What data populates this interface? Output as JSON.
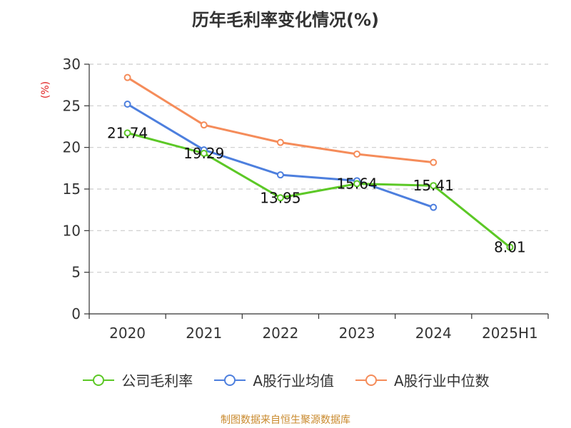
{
  "chart_data": {
    "type": "line",
    "title": "历年毛利率变化情况(%)",
    "ylabel": "(%)",
    "xlabel": "",
    "ylim": [
      0,
      30
    ],
    "yticks": [
      "0",
      "5",
      "10",
      "15",
      "20",
      "25",
      "30"
    ],
    "categories": [
      "2020",
      "2021",
      "2022",
      "2023",
      "2024",
      "2025H1"
    ],
    "grid": true,
    "legend_position": "bottom",
    "series": [
      {
        "name": "公司毛利率",
        "color": "#5cc826",
        "values": [
          21.74,
          19.29,
          13.95,
          15.64,
          15.41,
          8.01
        ],
        "labels": [
          "21.74",
          "19.29",
          "13.95",
          "15.64",
          "15.41",
          "8.01"
        ]
      },
      {
        "name": "A股行业均值",
        "color": "#4d7fde",
        "values": [
          25.2,
          19.7,
          16.7,
          16.0,
          12.8,
          null
        ]
      },
      {
        "name": "A股行业中位数",
        "color": "#f58c5a",
        "values": [
          28.4,
          22.7,
          20.6,
          19.2,
          18.2,
          null
        ]
      }
    ]
  },
  "source": "制图数据来自恒生聚源数据库"
}
